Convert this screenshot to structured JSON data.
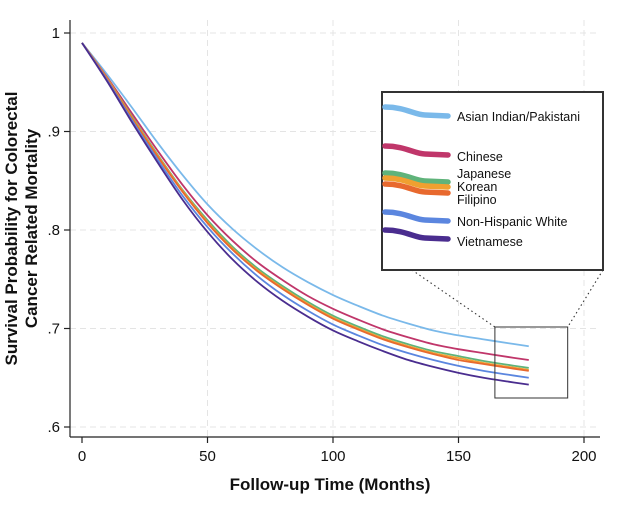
{
  "chart_data": {
    "type": "line",
    "title": "",
    "xlabel": "Follow-up Time (Months)",
    "ylabel_lines": [
      "Survival Probability for Colorectal",
      "Cancer Related Mortality"
    ],
    "xlim": [
      0,
      200
    ],
    "ylim": [
      0.6,
      1.0
    ],
    "x_ticks": [
      0,
      50,
      100,
      150,
      200
    ],
    "x_tick_labels": [
      "0",
      "50",
      "100",
      "150",
      "200"
    ],
    "y_ticks": [
      0.6,
      0.7,
      0.8,
      0.9,
      1.0
    ],
    "y_tick_labels": [
      ".6",
      ".7",
      ".8",
      ".9",
      "1"
    ],
    "grid": true,
    "legend_position": "inset-right",
    "zoom_inset": true,
    "x": [
      0,
      10,
      20,
      30,
      40,
      50,
      60,
      70,
      80,
      90,
      100,
      110,
      120,
      130,
      140,
      150,
      160,
      170,
      178
    ],
    "series": [
      {
        "name": "Asian Indian/Pakistani",
        "color": "#7ab9ea",
        "values": [
          0.99,
          0.958,
          0.924,
          0.889,
          0.856,
          0.826,
          0.801,
          0.78,
          0.762,
          0.747,
          0.734,
          0.723,
          0.713,
          0.705,
          0.698,
          0.693,
          0.689,
          0.685,
          0.682
        ]
      },
      {
        "name": "Chinese",
        "color": "#c0366a",
        "values": [
          0.99,
          0.955,
          0.918,
          0.881,
          0.846,
          0.815,
          0.789,
          0.767,
          0.749,
          0.733,
          0.72,
          0.709,
          0.699,
          0.691,
          0.684,
          0.679,
          0.675,
          0.671,
          0.668
        ]
      },
      {
        "name": "Japanese",
        "color": "#5fb37a",
        "values": [
          0.99,
          0.954,
          0.915,
          0.877,
          0.841,
          0.81,
          0.783,
          0.761,
          0.743,
          0.727,
          0.713,
          0.702,
          0.692,
          0.684,
          0.677,
          0.672,
          0.667,
          0.663,
          0.66
        ]
      },
      {
        "name": "Korean",
        "color": "#f0a030",
        "values": [
          0.99,
          0.954,
          0.914,
          0.876,
          0.84,
          0.808,
          0.781,
          0.759,
          0.741,
          0.725,
          0.711,
          0.7,
          0.69,
          0.682,
          0.675,
          0.67,
          0.665,
          0.661,
          0.658
        ]
      },
      {
        "name": "Filipino",
        "color": "#e8692e",
        "values": [
          0.99,
          0.953,
          0.913,
          0.875,
          0.839,
          0.807,
          0.78,
          0.758,
          0.74,
          0.724,
          0.71,
          0.699,
          0.689,
          0.681,
          0.674,
          0.668,
          0.664,
          0.66,
          0.657
        ]
      },
      {
        "name": "Non-Hispanic White",
        "color": "#5b86df",
        "values": [
          0.99,
          0.952,
          0.911,
          0.872,
          0.835,
          0.803,
          0.776,
          0.753,
          0.734,
          0.718,
          0.704,
          0.693,
          0.683,
          0.675,
          0.668,
          0.662,
          0.657,
          0.653,
          0.65
        ]
      },
      {
        "name": "Vietnamese",
        "color": "#4a2d8f",
        "values": [
          0.99,
          0.951,
          0.909,
          0.869,
          0.831,
          0.798,
          0.77,
          0.747,
          0.728,
          0.712,
          0.698,
          0.687,
          0.677,
          0.668,
          0.661,
          0.655,
          0.65,
          0.646,
          0.643
        ]
      }
    ]
  }
}
